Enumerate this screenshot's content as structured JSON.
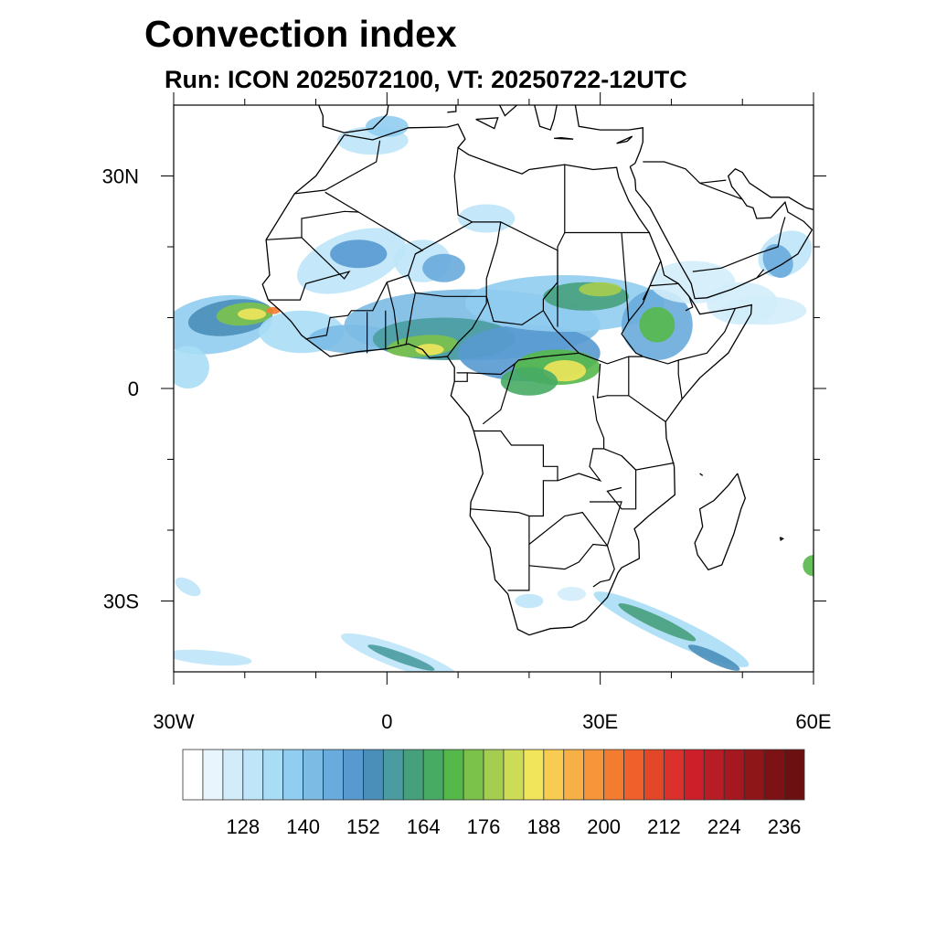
{
  "title": "Convection index",
  "subtitle": "Run: ICON 2025072100,  VT: 20250722-12UTC",
  "map": {
    "lon_range": [
      -30,
      60
    ],
    "lat_range": [
      -40,
      40
    ],
    "x_ticks": [
      {
        "value": -30,
        "label": "30W"
      },
      {
        "value": 0,
        "label": "0"
      },
      {
        "value": 30,
        "label": "30E"
      },
      {
        "value": 60,
        "label": "60E"
      }
    ],
    "y_ticks": [
      {
        "value": 30,
        "label": "30N"
      },
      {
        "value": 0,
        "label": "0"
      },
      {
        "value": -30,
        "label": "30S"
      }
    ]
  },
  "colorbar": {
    "levels_start": 120,
    "levels_step": 4,
    "labels": [
      "128",
      "140",
      "152",
      "164",
      "176",
      "188",
      "200",
      "212",
      "224",
      "236"
    ],
    "colors": [
      "#ffffff",
      "#e8f5fc",
      "#d2edf9",
      "#bee6f8",
      "#a9ddf6",
      "#91cdf0",
      "#7bbbe4",
      "#69abdc",
      "#5899d0",
      "#4a8fba",
      "#4a9ca0",
      "#47a07c",
      "#47ab64",
      "#55b84a",
      "#7bc24b",
      "#a5cd4f",
      "#cddc56",
      "#f0e55b",
      "#f8cc50",
      "#f6b045",
      "#f6953a",
      "#f47c31",
      "#f0602a",
      "#e44728",
      "#dc302c",
      "#cc1f2a",
      "#b81c25",
      "#a5181f",
      "#8e1518",
      "#7d1215",
      "#6c1012"
    ]
  }
}
